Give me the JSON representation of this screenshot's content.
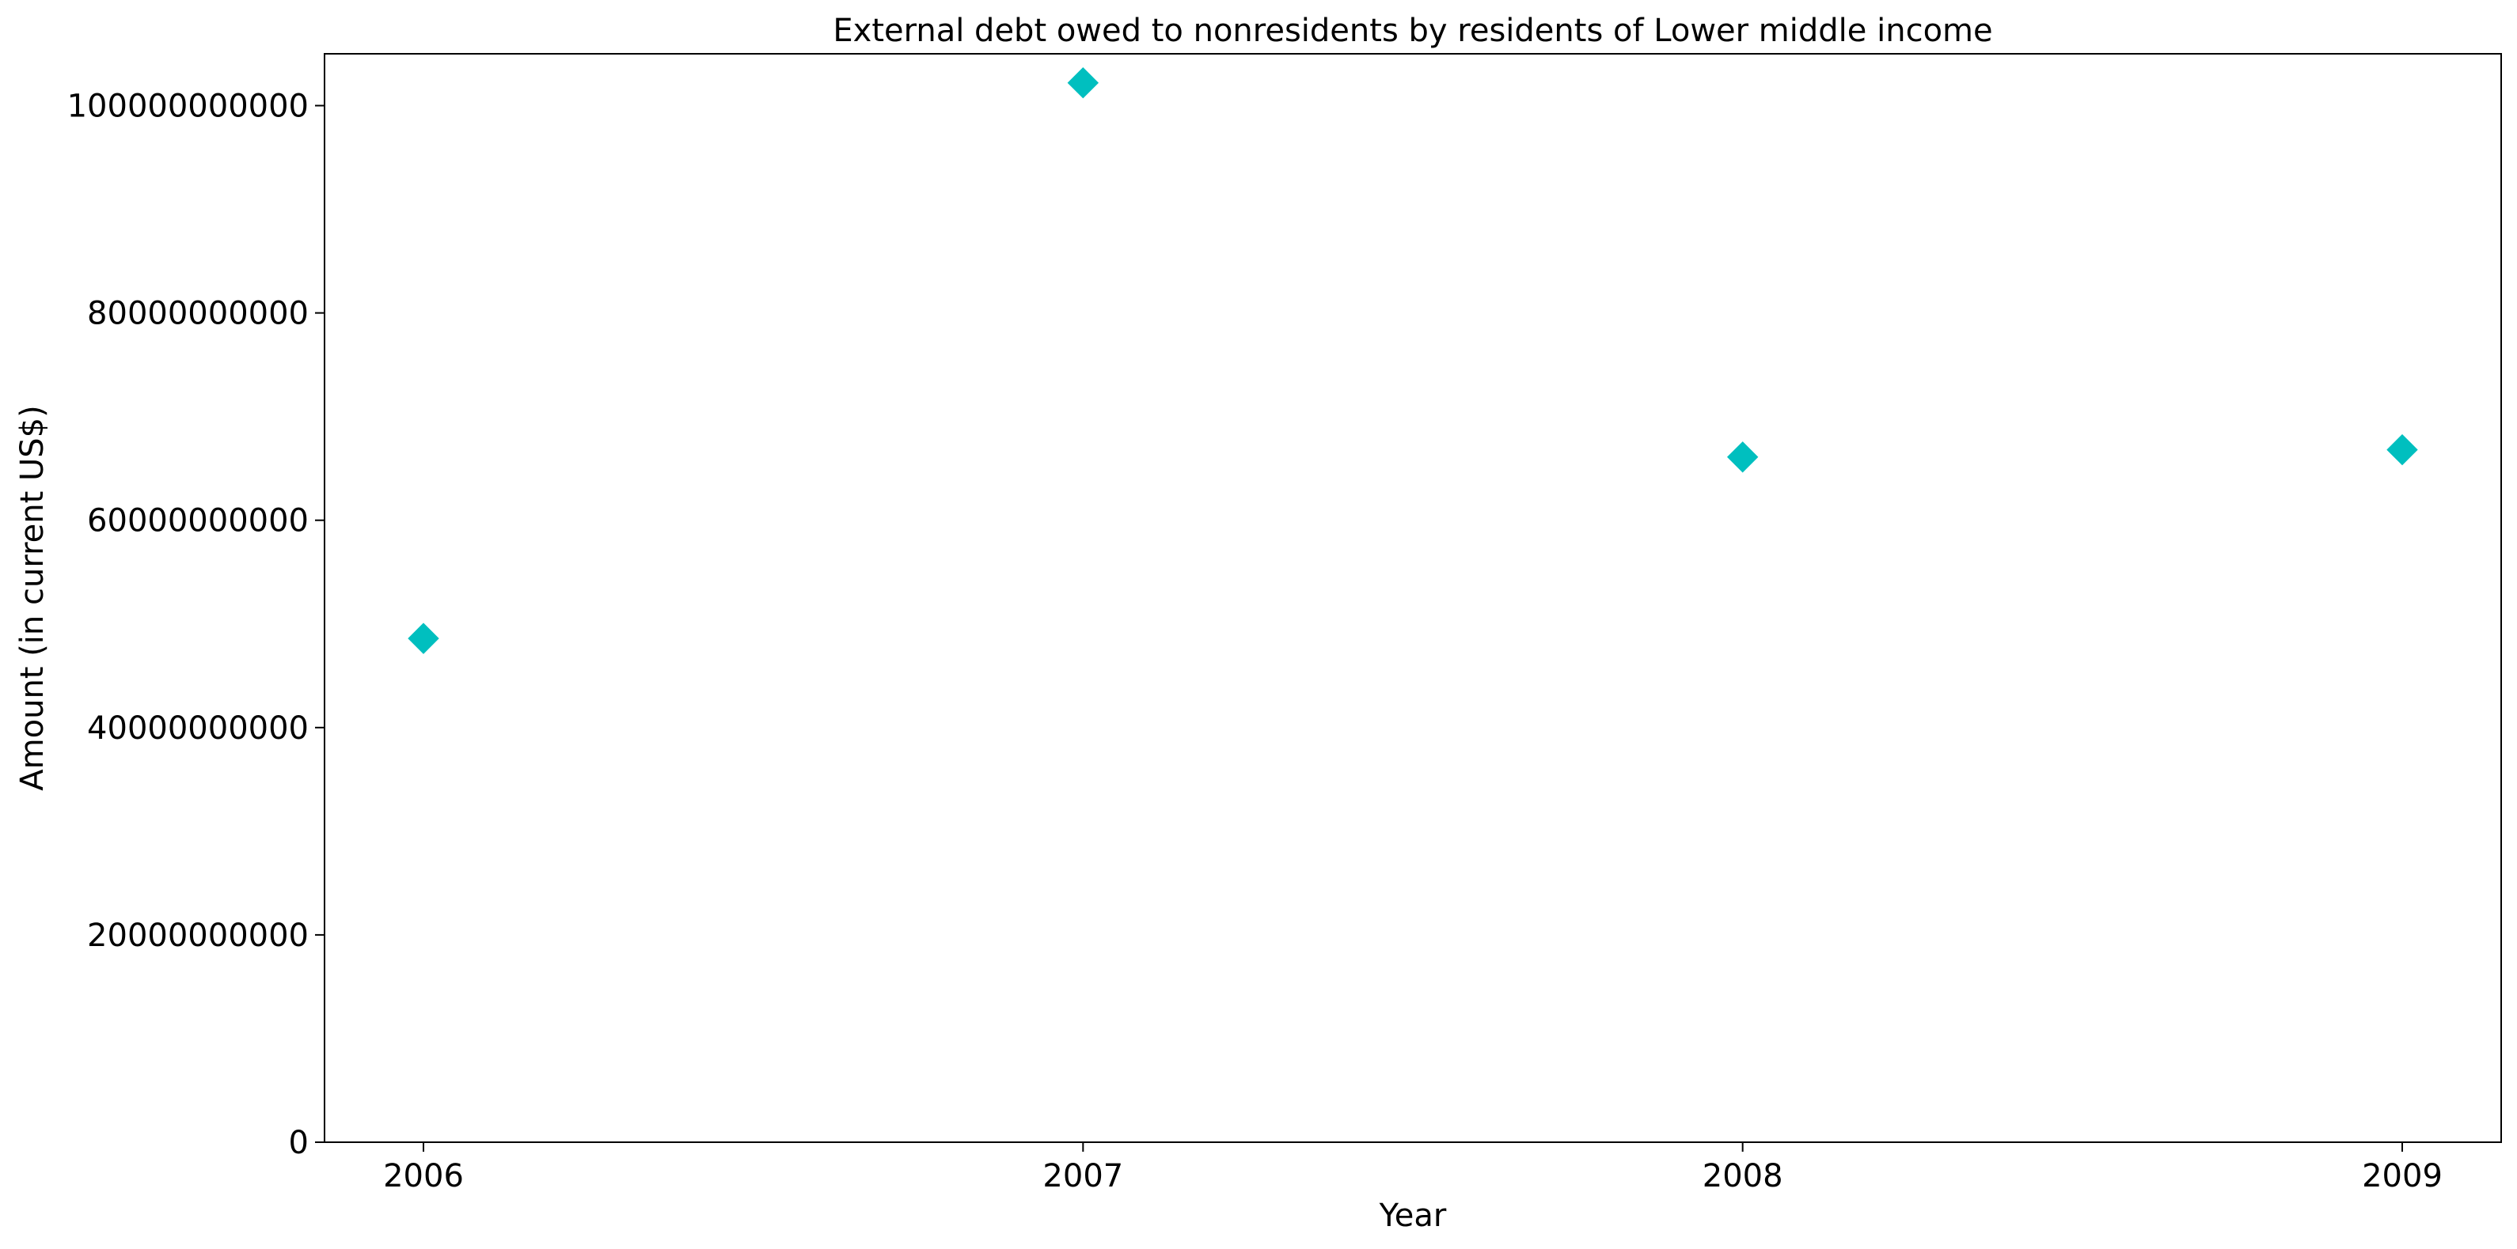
{
  "chart_data": {
    "type": "scatter",
    "title": "External debt owed to nonresidents by residents of Lower middle income",
    "xlabel": "Year",
    "ylabel": "Amount (in current US$)",
    "x_ticks": [
      "2006",
      "2007",
      "2008",
      "2009"
    ],
    "y_ticks": [
      "0",
      "20000000000",
      "40000000000",
      "60000000000",
      "80000000000",
      "100000000000"
    ],
    "ylim": [
      0,
      105000000000
    ],
    "xlim": [
      2005.85,
      2009.15
    ],
    "grid": false,
    "legend": "none",
    "series": [
      {
        "color": "#00bfbf",
        "marker": "diamond",
        "points": [
          {
            "x": 2006,
            "y": 48600000000
          },
          {
            "x": 2007,
            "y": 102200000000
          },
          {
            "x": 2008,
            "y": 66100000000
          },
          {
            "x": 2009,
            "y": 66800000000
          }
        ]
      }
    ]
  }
}
